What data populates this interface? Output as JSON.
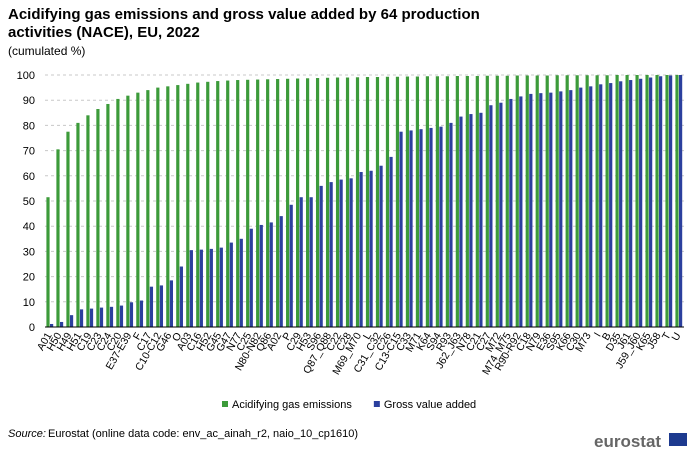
{
  "chart_data": {
    "type": "bar",
    "title_lines": [
      "Acidifying gas emissions and gross value added by 64 production",
      "activities (NACE), EU, 2022"
    ],
    "subtitle": "(cumulated  %)",
    "categories": [
      "A01",
      "H50",
      "H49",
      "H51",
      "C19",
      "C23",
      "C24",
      "C20",
      "E37-E39",
      "F",
      "C17",
      "C10-C12",
      "G46",
      "O",
      "A03",
      "C16",
      "H52",
      "G45",
      "G47",
      "N77",
      "C25",
      "N80-N82",
      "Q86",
      "A02",
      "P",
      "C29",
      "H53",
      "S96",
      "Q87_Q88",
      "C22",
      "C28",
      "M69_M70",
      "L",
      "C31_C32",
      "C26",
      "C13-C15",
      "C33",
      "M71",
      "K64",
      "S94",
      "R93",
      "J62_J63",
      "N78",
      "C21",
      "C27",
      "M72",
      "M74_M75",
      "R90-R92",
      "C18",
      "N79",
      "E36",
      "S95",
      "K66",
      "C30",
      "M73",
      "I",
      "B",
      "D35",
      "J61",
      "J59_J60",
      "K65",
      "J58",
      "T",
      "U"
    ],
    "series": [
      {
        "name": "Acidifying gas emissions",
        "color": "#3c9b3a",
        "values": [
          51.5,
          70.5,
          77.5,
          81,
          84,
          86.5,
          88.5,
          90.5,
          91.8,
          93,
          94,
          95,
          95.5,
          96,
          96.5,
          97,
          97.3,
          97.6,
          97.8,
          98,
          98.1,
          98.2,
          98.3,
          98.4,
          98.5,
          98.6,
          98.7,
          98.8,
          98.9,
          99,
          99,
          99.1,
          99.2,
          99.2,
          99.3,
          99.3,
          99.4,
          99.4,
          99.5,
          99.5,
          99.5,
          99.6,
          99.6,
          99.6,
          99.7,
          99.7,
          99.7,
          99.8,
          99.8,
          99.8,
          99.8,
          99.9,
          99.9,
          99.9,
          99.9,
          99.9,
          99.9,
          100,
          100,
          100,
          100,
          100,
          100,
          100
        ]
      },
      {
        "name": "Gross value added",
        "color": "#2b3f9e",
        "values": [
          1.2,
          2,
          4.7,
          7,
          7.3,
          7.7,
          8,
          8.5,
          9.8,
          10.5,
          16,
          16.5,
          18.5,
          24,
          30.5,
          30.7,
          31,
          31.5,
          33.5,
          35,
          39,
          40.5,
          41.5,
          44,
          48.5,
          51.5,
          51.5,
          56,
          57.5,
          58.5,
          59,
          61.5,
          62,
          64,
          67.5,
          77.5,
          78,
          78.5,
          79,
          79.5,
          81,
          83.5,
          84.5,
          85,
          88,
          89,
          90.5,
          91.5,
          92.5,
          92.8,
          93,
          93.5,
          94,
          95,
          95.5,
          96.3,
          96.8,
          97.5,
          98,
          98.5,
          99,
          99.5,
          99.8,
          100
        ]
      }
    ],
    "ylim": [
      0,
      100
    ],
    "yticks": [
      0,
      10,
      20,
      30,
      40,
      50,
      60,
      70,
      80,
      90,
      100
    ],
    "grid": true,
    "legend": "bottom",
    "source_label": "Source:",
    "source_text": "Eurostat (online data code: env_ac_ainah_r2, naio_10_cp1610)",
    "logo": "eurostat"
  }
}
